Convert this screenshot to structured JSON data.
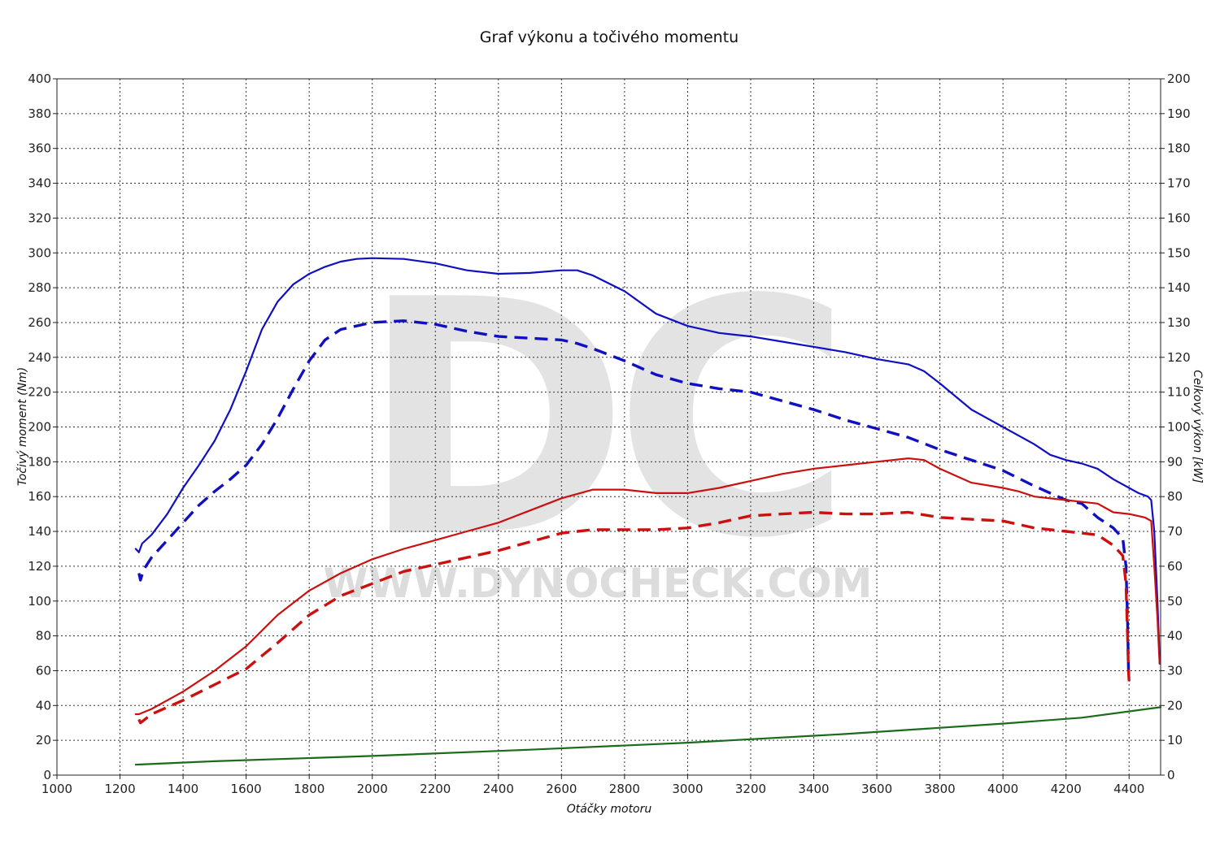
{
  "chart_data": {
    "type": "line",
    "title": "Graf výkonu a točivého momentu",
    "xlabel": "Otáčky motoru",
    "ylabel_left": "Točivý moment (Nm)",
    "ylabel_right": "Celkový výkon [kW]",
    "watermark": {
      "logo": "DC",
      "text": "WWW.DYNOCHECK.COM"
    },
    "xlim": [
      1000,
      4500
    ],
    "ylim_left": [
      0,
      400
    ],
    "ylim_right": [
      0,
      200
    ],
    "x_ticks": [
      1000,
      1200,
      1400,
      1600,
      1800,
      2000,
      2200,
      2400,
      2600,
      2800,
      3000,
      3200,
      3400,
      3600,
      3800,
      4000,
      4200,
      4400
    ],
    "y_ticks_left": [
      0,
      20,
      40,
      60,
      80,
      100,
      120,
      140,
      160,
      180,
      200,
      220,
      240,
      260,
      280,
      300,
      320,
      340,
      360,
      380,
      400
    ],
    "y_ticks_right": [
      0,
      10,
      20,
      30,
      40,
      50,
      60,
      70,
      80,
      90,
      100,
      110,
      120,
      130,
      140,
      150,
      160,
      170,
      180,
      190,
      200
    ],
    "grid": true,
    "series": [
      {
        "axis": "left",
        "color": "#1010c0",
        "dashed": false,
        "points": [
          [
            1250,
            130
          ],
          [
            1260,
            128
          ],
          [
            1270,
            133
          ],
          [
            1300,
            138
          ],
          [
            1350,
            150
          ],
          [
            1400,
            165
          ],
          [
            1450,
            178
          ],
          [
            1500,
            192
          ],
          [
            1550,
            210
          ],
          [
            1600,
            232
          ],
          [
            1650,
            256
          ],
          [
            1700,
            272
          ],
          [
            1750,
            282
          ],
          [
            1800,
            288
          ],
          [
            1850,
            292
          ],
          [
            1900,
            295
          ],
          [
            1950,
            296.5
          ],
          [
            2000,
            297
          ],
          [
            2100,
            296.5
          ],
          [
            2200,
            294
          ],
          [
            2300,
            290
          ],
          [
            2400,
            288
          ],
          [
            2500,
            288.5
          ],
          [
            2600,
            290
          ],
          [
            2650,
            290
          ],
          [
            2700,
            287
          ],
          [
            2800,
            278
          ],
          [
            2900,
            265
          ],
          [
            3000,
            258
          ],
          [
            3100,
            254
          ],
          [
            3200,
            252
          ],
          [
            3300,
            249
          ],
          [
            3400,
            246
          ],
          [
            3500,
            243
          ],
          [
            3600,
            239
          ],
          [
            3700,
            236
          ],
          [
            3750,
            232
          ],
          [
            3800,
            225
          ],
          [
            3900,
            210
          ],
          [
            4000,
            200
          ],
          [
            4100,
            190
          ],
          [
            4150,
            184
          ],
          [
            4200,
            181
          ],
          [
            4250,
            179
          ],
          [
            4300,
            176
          ],
          [
            4350,
            170
          ],
          [
            4400,
            165
          ],
          [
            4430,
            162
          ],
          [
            4460,
            160
          ],
          [
            4470,
            158
          ],
          [
            4480,
            140
          ],
          [
            4490,
            100
          ],
          [
            4495,
            75
          ],
          [
            4497,
            64
          ]
        ]
      },
      {
        "axis": "left",
        "color": "#1010c0",
        "dashed": true,
        "points": [
          [
            1260,
            116
          ],
          [
            1265,
            112
          ],
          [
            1275,
            118
          ],
          [
            1300,
            125
          ],
          [
            1350,
            135
          ],
          [
            1400,
            145
          ],
          [
            1450,
            155
          ],
          [
            1500,
            163
          ],
          [
            1550,
            170
          ],
          [
            1600,
            178
          ],
          [
            1650,
            190
          ],
          [
            1700,
            205
          ],
          [
            1750,
            222
          ],
          [
            1800,
            238
          ],
          [
            1850,
            250
          ],
          [
            1900,
            256
          ],
          [
            1950,
            258
          ],
          [
            2000,
            260
          ],
          [
            2100,
            261
          ],
          [
            2200,
            259
          ],
          [
            2300,
            255
          ],
          [
            2400,
            252
          ],
          [
            2500,
            251
          ],
          [
            2600,
            250
          ],
          [
            2650,
            248
          ],
          [
            2700,
            245
          ],
          [
            2800,
            238
          ],
          [
            2900,
            230
          ],
          [
            3000,
            225
          ],
          [
            3100,
            222
          ],
          [
            3200,
            220
          ],
          [
            3300,
            215
          ],
          [
            3400,
            210
          ],
          [
            3500,
            204
          ],
          [
            3600,
            199
          ],
          [
            3700,
            194
          ],
          [
            3800,
            187
          ],
          [
            3900,
            181
          ],
          [
            4000,
            175
          ],
          [
            4100,
            166
          ],
          [
            4150,
            162
          ],
          [
            4200,
            158
          ],
          [
            4250,
            156
          ],
          [
            4300,
            148
          ],
          [
            4350,
            142
          ],
          [
            4380,
            136
          ],
          [
            4390,
            120
          ],
          [
            4395,
            90
          ],
          [
            4398,
            60
          ],
          [
            4400,
            55
          ]
        ]
      },
      {
        "axis": "right",
        "color": "#cc1010",
        "dashed": false,
        "points": [
          [
            1250,
            17.5
          ],
          [
            1260,
            17.5
          ],
          [
            1300,
            19
          ],
          [
            1400,
            24
          ],
          [
            1500,
            30
          ],
          [
            1600,
            37
          ],
          [
            1700,
            46
          ],
          [
            1800,
            53
          ],
          [
            1900,
            58
          ],
          [
            2000,
            62
          ],
          [
            2100,
            65
          ],
          [
            2200,
            67.5
          ],
          [
            2300,
            70
          ],
          [
            2400,
            72.5
          ],
          [
            2500,
            76
          ],
          [
            2600,
            79.5
          ],
          [
            2700,
            82
          ],
          [
            2800,
            82
          ],
          [
            2900,
            81
          ],
          [
            3000,
            81
          ],
          [
            3100,
            82.5
          ],
          [
            3200,
            84.5
          ],
          [
            3300,
            86.5
          ],
          [
            3400,
            88
          ],
          [
            3500,
            89
          ],
          [
            3600,
            90
          ],
          [
            3700,
            91
          ],
          [
            3750,
            90.5
          ],
          [
            3800,
            88
          ],
          [
            3900,
            84
          ],
          [
            4000,
            82.5
          ],
          [
            4050,
            81.5
          ],
          [
            4100,
            80
          ],
          [
            4200,
            79
          ],
          [
            4300,
            78
          ],
          [
            4350,
            75.5
          ],
          [
            4400,
            75
          ],
          [
            4450,
            74
          ],
          [
            4470,
            73
          ],
          [
            4480,
            60
          ],
          [
            4490,
            45
          ],
          [
            4495,
            35
          ],
          [
            4497,
            32
          ]
        ]
      },
      {
        "axis": "right",
        "color": "#cc1010",
        "dashed": true,
        "points": [
          [
            1260,
            16
          ],
          [
            1265,
            15
          ],
          [
            1300,
            17.5
          ],
          [
            1400,
            21.5
          ],
          [
            1500,
            26
          ],
          [
            1600,
            30.5
          ],
          [
            1700,
            38
          ],
          [
            1800,
            46
          ],
          [
            1900,
            51.5
          ],
          [
            2000,
            55
          ],
          [
            2100,
            58.5
          ],
          [
            2200,
            60.5
          ],
          [
            2300,
            62.5
          ],
          [
            2400,
            64.5
          ],
          [
            2500,
            67
          ],
          [
            2600,
            69.5
          ],
          [
            2700,
            70.5
          ],
          [
            2800,
            70.5
          ],
          [
            2900,
            70.5
          ],
          [
            3000,
            71
          ],
          [
            3100,
            72.5
          ],
          [
            3200,
            74.5
          ],
          [
            3300,
            75
          ],
          [
            3400,
            75.5
          ],
          [
            3500,
            75
          ],
          [
            3600,
            75
          ],
          [
            3700,
            75.5
          ],
          [
            3800,
            74
          ],
          [
            3900,
            73.5
          ],
          [
            4000,
            73
          ],
          [
            4100,
            71
          ],
          [
            4200,
            70
          ],
          [
            4300,
            69
          ],
          [
            4350,
            66
          ],
          [
            4380,
            63
          ],
          [
            4390,
            55
          ],
          [
            4395,
            40
          ],
          [
            4398,
            30
          ],
          [
            4400,
            27
          ]
        ]
      },
      {
        "axis": "right",
        "color": "#1a6b1a",
        "dashed": false,
        "points": [
          [
            1250,
            3
          ],
          [
            1500,
            4
          ],
          [
            2000,
            5.5
          ],
          [
            2500,
            7.3
          ],
          [
            3000,
            9.3
          ],
          [
            3500,
            11.8
          ],
          [
            4000,
            14.8
          ],
          [
            4250,
            16.5
          ],
          [
            4500,
            19.5
          ]
        ]
      }
    ]
  }
}
